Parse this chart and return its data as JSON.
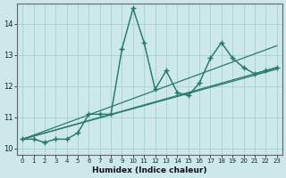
{
  "xlabel": "Humidex (Indice chaleur)",
  "background_color": "#cce8e8",
  "grid_color": "#aad4d4",
  "line_color": "#2a7a6a",
  "xlim": [
    -0.5,
    23.5
  ],
  "ylim": [
    9.8,
    14.65
  ],
  "xticks": [
    0,
    1,
    2,
    3,
    4,
    5,
    6,
    7,
    8,
    9,
    10,
    11,
    12,
    13,
    14,
    15,
    16,
    17,
    18,
    19,
    20,
    21,
    22,
    23
  ],
  "yticks": [
    10,
    11,
    12,
    13,
    14
  ],
  "line_dotted": {
    "x": [
      0,
      1,
      2,
      3,
      4,
      5,
      6,
      7,
      8,
      9,
      10,
      11,
      12,
      13,
      14,
      15,
      16,
      17,
      18,
      19,
      20,
      21,
      22,
      23
    ],
    "y": [
      10.3,
      10.3,
      10.2,
      10.3,
      10.3,
      10.5,
      11.1,
      11.1,
      11.1,
      13.2,
      14.5,
      13.4,
      11.9,
      12.5,
      11.8,
      11.7,
      12.1,
      12.9,
      13.4,
      12.9,
      12.6,
      12.4,
      12.5,
      12.6
    ]
  },
  "line_solid_markers": {
    "x": [
      0,
      1,
      2,
      3,
      4,
      5,
      6,
      7,
      8,
      9,
      10,
      11,
      12,
      13,
      14,
      15,
      16,
      17,
      18,
      19,
      20,
      21,
      22,
      23
    ],
    "y": [
      10.3,
      10.3,
      10.2,
      10.3,
      10.3,
      10.5,
      11.1,
      11.1,
      11.1,
      13.2,
      14.5,
      13.4,
      11.9,
      12.5,
      11.8,
      11.7,
      12.1,
      12.9,
      13.4,
      12.9,
      12.6,
      12.4,
      12.5,
      12.6
    ]
  },
  "line_straight1": {
    "x": [
      0,
      23
    ],
    "y": [
      10.3,
      13.3
    ]
  },
  "line_straight2": {
    "x": [
      0,
      23
    ],
    "y": [
      10.3,
      12.6
    ]
  },
  "line_straight3": {
    "x": [
      0,
      23
    ],
    "y": [
      10.3,
      12.55
    ]
  }
}
